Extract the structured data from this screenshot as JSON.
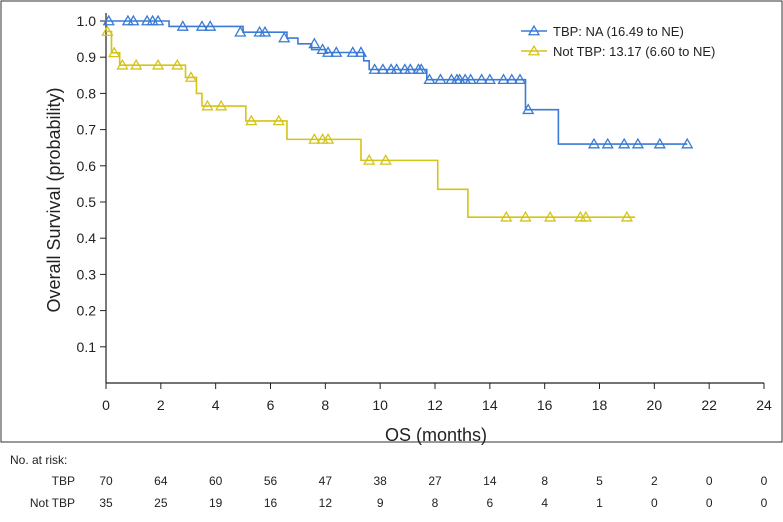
{
  "chart_data": {
    "type": "line",
    "title": "",
    "xlabel": "OS (months)",
    "ylabel": "Overall Survival (probability)",
    "xlim": [
      0,
      24
    ],
    "ylim": [
      0,
      1.0
    ],
    "x_ticks": [
      0,
      2,
      4,
      6,
      8,
      10,
      12,
      14,
      16,
      18,
      20,
      22,
      24
    ],
    "y_ticks": [
      0.1,
      0.2,
      0.3,
      0.4,
      0.5,
      0.6,
      0.7,
      0.8,
      0.9,
      1.0
    ],
    "x_tick_labels": [
      "0",
      "2",
      "4",
      "6",
      "8",
      "10",
      "12",
      "14",
      "16",
      "18",
      "20",
      "22",
      "24"
    ],
    "y_tick_labels": [
      "0.1",
      "0.2",
      "0.3",
      "0.4",
      "0.5",
      "0.6",
      "0.7",
      "0.8",
      "0.9",
      "1.0"
    ],
    "legend_position": "top-right",
    "series": [
      {
        "name": "TBP",
        "legend_label": "TBP: NA (16.49 to NE)",
        "color": "#3a7bd5",
        "steps": [
          [
            0,
            1.0
          ],
          [
            2.3,
            0.985
          ],
          [
            5.0,
            0.969
          ],
          [
            6.6,
            0.953
          ],
          [
            7.0,
            0.937
          ],
          [
            7.5,
            0.921
          ],
          [
            8.0,
            0.913
          ],
          [
            9.4,
            0.89
          ],
          [
            9.6,
            0.866
          ],
          [
            11.7,
            0.838
          ],
          [
            15.3,
            0.755
          ],
          [
            16.5,
            0.66
          ],
          [
            21.2,
            0.66
          ]
        ],
        "censored": [
          [
            0.1,
            1.0
          ],
          [
            0.8,
            1.0
          ],
          [
            1.0,
            1.0
          ],
          [
            1.5,
            1.0
          ],
          [
            1.7,
            1.0
          ],
          [
            1.9,
            1.0
          ],
          [
            2.8,
            0.985
          ],
          [
            3.5,
            0.985
          ],
          [
            3.8,
            0.985
          ],
          [
            4.9,
            0.969
          ],
          [
            5.6,
            0.969
          ],
          [
            5.8,
            0.969
          ],
          [
            6.5,
            0.953
          ],
          [
            7.6,
            0.937
          ],
          [
            7.9,
            0.921
          ],
          [
            8.1,
            0.913
          ],
          [
            8.4,
            0.913
          ],
          [
            9.0,
            0.913
          ],
          [
            9.3,
            0.913
          ],
          [
            9.8,
            0.866
          ],
          [
            10.1,
            0.866
          ],
          [
            10.4,
            0.866
          ],
          [
            10.6,
            0.866
          ],
          [
            10.9,
            0.866
          ],
          [
            11.1,
            0.866
          ],
          [
            11.4,
            0.866
          ],
          [
            11.5,
            0.866
          ],
          [
            11.8,
            0.838
          ],
          [
            12.2,
            0.838
          ],
          [
            12.6,
            0.838
          ],
          [
            12.8,
            0.838
          ],
          [
            12.9,
            0.838
          ],
          [
            13.1,
            0.838
          ],
          [
            13.3,
            0.838
          ],
          [
            13.7,
            0.838
          ],
          [
            14.0,
            0.838
          ],
          [
            14.5,
            0.838
          ],
          [
            14.8,
            0.838
          ],
          [
            15.1,
            0.838
          ],
          [
            15.4,
            0.755
          ],
          [
            17.8,
            0.66
          ],
          [
            18.3,
            0.66
          ],
          [
            18.9,
            0.66
          ],
          [
            19.4,
            0.66
          ],
          [
            20.2,
            0.66
          ],
          [
            21.2,
            0.66
          ]
        ]
      },
      {
        "name": "Not TBP",
        "legend_label": "Not TBP: 13.17 (6.60 to NE)",
        "color": "#d4c416",
        "steps": [
          [
            0,
            0.971
          ],
          [
            0.2,
            0.912
          ],
          [
            0.5,
            0.878
          ],
          [
            2.6,
            0.878
          ],
          [
            2.9,
            0.844
          ],
          [
            3.3,
            0.8
          ],
          [
            3.5,
            0.765
          ],
          [
            5.1,
            0.724
          ],
          [
            6.6,
            0.673
          ],
          [
            9.3,
            0.615
          ],
          [
            12.1,
            0.535
          ],
          [
            13.2,
            0.458
          ],
          [
            19.3,
            0.458
          ]
        ],
        "censored": [
          [
            0.05,
            0.971
          ],
          [
            0.3,
            0.912
          ],
          [
            0.6,
            0.878
          ],
          [
            1.1,
            0.878
          ],
          [
            1.9,
            0.878
          ],
          [
            2.6,
            0.878
          ],
          [
            3.1,
            0.844
          ],
          [
            3.7,
            0.765
          ],
          [
            4.2,
            0.765
          ],
          [
            5.3,
            0.724
          ],
          [
            6.3,
            0.724
          ],
          [
            7.6,
            0.673
          ],
          [
            7.9,
            0.673
          ],
          [
            8.1,
            0.673
          ],
          [
            9.6,
            0.615
          ],
          [
            10.2,
            0.615
          ],
          [
            14.6,
            0.458
          ],
          [
            15.3,
            0.458
          ],
          [
            16.2,
            0.458
          ],
          [
            17.3,
            0.458
          ],
          [
            17.5,
            0.458
          ],
          [
            19.0,
            0.458
          ]
        ]
      }
    ],
    "risk_table": {
      "header": "No. at risk:",
      "times": [
        0,
        2,
        4,
        6,
        8,
        10,
        12,
        14,
        16,
        18,
        20,
        22,
        24
      ],
      "rows": [
        {
          "label": "TBP",
          "values": [
            "70",
            "64",
            "60",
            "56",
            "47",
            "38",
            "27",
            "14",
            "8",
            "5",
            "2",
            "0",
            "0"
          ]
        },
        {
          "label": "Not TBP",
          "values": [
            "35",
            "25",
            "19",
            "16",
            "12",
            "9",
            "8",
            "6",
            "4",
            "1",
            "0",
            "0",
            "0"
          ]
        }
      ]
    }
  }
}
